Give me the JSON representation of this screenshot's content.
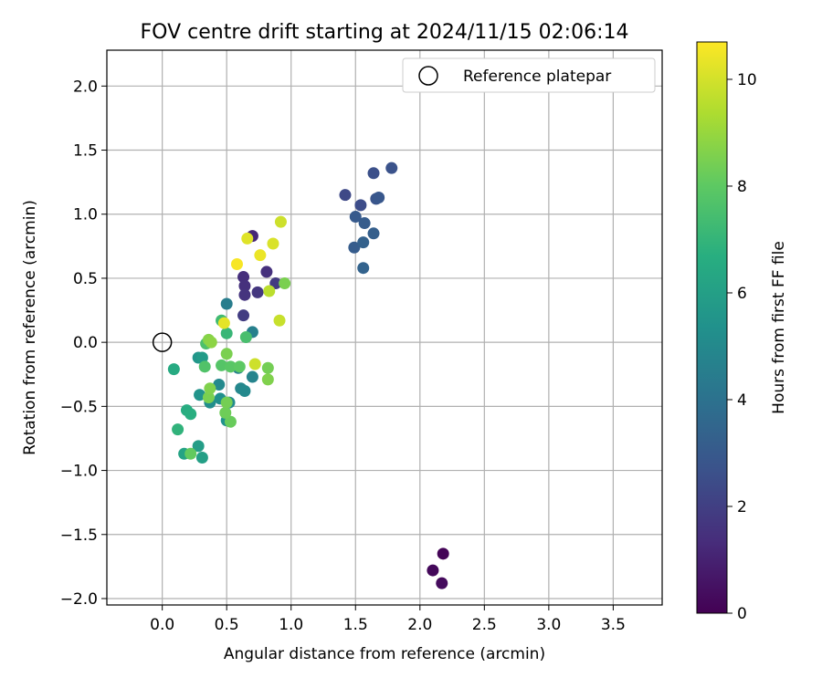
{
  "chart_data": {
    "type": "scatter",
    "title": "FOV centre drift starting at 2024/11/15 02:06:14",
    "xlabel": "Angular distance from reference (arcmin)",
    "ylabel": "Rotation from reference (arcmin)",
    "xlim": [
      -0.43,
      3.88
    ],
    "ylim": [
      -2.05,
      2.28
    ],
    "x_ticks": [
      0.0,
      0.5,
      1.0,
      1.5,
      2.0,
      2.5,
      3.0,
      3.5
    ],
    "x_tick_labels": [
      "0.0",
      "0.5",
      "1.0",
      "1.5",
      "2.0",
      "2.5",
      "3.0",
      "3.5"
    ],
    "y_ticks": [
      -2.0,
      -1.5,
      -1.0,
      -0.5,
      0.0,
      0.5,
      1.0,
      1.5,
      2.0
    ],
    "y_tick_labels": [
      "−2.0",
      "−1.5",
      "−1.0",
      "−0.5",
      "0.0",
      "0.5",
      "1.0",
      "1.5",
      "2.0"
    ],
    "grid": true,
    "legend": {
      "placement": "top-right",
      "entries": [
        "Reference platepar"
      ]
    },
    "reference_point": {
      "name": "Reference platepar",
      "x": 0.0,
      "y": 0.0
    },
    "colorbar": {
      "label": "Hours from first FF file",
      "range": [
        0,
        10.7
      ],
      "ticks": [
        0,
        2,
        4,
        6,
        8,
        10
      ],
      "tick_labels": [
        "0",
        "2",
        "4",
        "6",
        "8",
        "10"
      ],
      "colormap": "viridis"
    },
    "points": [
      {
        "x": 2.18,
        "y": -1.65,
        "h": 0.1
      },
      {
        "x": 2.1,
        "y": -1.78,
        "h": 0.2
      },
      {
        "x": 2.17,
        "y": -1.88,
        "h": 0.3
      },
      {
        "x": 0.7,
        "y": 0.83,
        "h": 1.2
      },
      {
        "x": 0.63,
        "y": 0.51,
        "h": 1.4
      },
      {
        "x": 0.64,
        "y": 0.44,
        "h": 1.5
      },
      {
        "x": 0.64,
        "y": 0.37,
        "h": 1.6
      },
      {
        "x": 0.74,
        "y": 0.39,
        "h": 1.7
      },
      {
        "x": 0.81,
        "y": 0.55,
        "h": 1.5
      },
      {
        "x": 0.88,
        "y": 0.46,
        "h": 1.8
      },
      {
        "x": 0.63,
        "y": 0.21,
        "h": 1.9
      },
      {
        "x": 1.42,
        "y": 1.15,
        "h": 2.3
      },
      {
        "x": 1.64,
        "y": 1.32,
        "h": 2.6
      },
      {
        "x": 1.78,
        "y": 1.36,
        "h": 2.7
      },
      {
        "x": 1.54,
        "y": 1.07,
        "h": 2.5
      },
      {
        "x": 1.66,
        "y": 1.12,
        "h": 2.8
      },
      {
        "x": 1.68,
        "y": 1.13,
        "h": 2.9
      },
      {
        "x": 1.5,
        "y": 0.98,
        "h": 3.0
      },
      {
        "x": 1.57,
        "y": 0.93,
        "h": 3.1
      },
      {
        "x": 1.64,
        "y": 0.85,
        "h": 3.2
      },
      {
        "x": 1.49,
        "y": 0.74,
        "h": 3.1
      },
      {
        "x": 1.56,
        "y": 0.78,
        "h": 3.3
      },
      {
        "x": 1.56,
        "y": 0.58,
        "h": 3.4
      },
      {
        "x": 0.5,
        "y": 0.3,
        "h": 4.5
      },
      {
        "x": 0.7,
        "y": 0.08,
        "h": 4.6
      },
      {
        "x": 0.59,
        "y": -0.2,
        "h": 4.7
      },
      {
        "x": 0.7,
        "y": -0.27,
        "h": 4.8
      },
      {
        "x": 0.61,
        "y": -0.36,
        "h": 4.9
      },
      {
        "x": 0.64,
        "y": -0.38,
        "h": 5.0
      },
      {
        "x": 0.44,
        "y": -0.33,
        "h": 5.0
      },
      {
        "x": 0.52,
        "y": -0.47,
        "h": 5.1
      },
      {
        "x": 0.37,
        "y": -0.47,
        "h": 5.2
      },
      {
        "x": 0.45,
        "y": -0.44,
        "h": 5.3
      },
      {
        "x": 0.5,
        "y": -0.61,
        "h": 5.4
      },
      {
        "x": 0.29,
        "y": -0.41,
        "h": 5.5
      },
      {
        "x": 0.28,
        "y": -0.12,
        "h": 5.6
      },
      {
        "x": 0.31,
        "y": -0.12,
        "h": 5.8
      },
      {
        "x": 0.28,
        "y": -0.81,
        "h": 5.9
      },
      {
        "x": 0.31,
        "y": -0.9,
        "h": 6.0
      },
      {
        "x": 0.17,
        "y": -0.87,
        "h": 6.2
      },
      {
        "x": 0.09,
        "y": -0.21,
        "h": 6.5
      },
      {
        "x": 0.19,
        "y": -0.53,
        "h": 6.6
      },
      {
        "x": 0.22,
        "y": -0.56,
        "h": 6.7
      },
      {
        "x": 0.12,
        "y": -0.68,
        "h": 6.9
      },
      {
        "x": 0.5,
        "y": 0.07,
        "h": 7.1
      },
      {
        "x": 0.46,
        "y": 0.17,
        "h": 7.3
      },
      {
        "x": 0.65,
        "y": 0.04,
        "h": 7.5
      },
      {
        "x": 0.34,
        "y": -0.01,
        "h": 7.6
      },
      {
        "x": 0.33,
        "y": -0.19,
        "h": 7.7
      },
      {
        "x": 0.46,
        "y": -0.18,
        "h": 7.8
      },
      {
        "x": 0.53,
        "y": -0.19,
        "h": 7.9
      },
      {
        "x": 0.6,
        "y": -0.19,
        "h": 8.0
      },
      {
        "x": 0.22,
        "y": -0.87,
        "h": 8.1
      },
      {
        "x": 0.53,
        "y": -0.62,
        "h": 8.2
      },
      {
        "x": 0.49,
        "y": -0.55,
        "h": 8.3
      },
      {
        "x": 0.5,
        "y": -0.47,
        "h": 8.4
      },
      {
        "x": 0.36,
        "y": -0.43,
        "h": 8.5
      },
      {
        "x": 0.37,
        "y": -0.36,
        "h": 8.6
      },
      {
        "x": 0.5,
        "y": -0.09,
        "h": 8.5
      },
      {
        "x": 0.36,
        "y": 0.02,
        "h": 8.7
      },
      {
        "x": 0.38,
        "y": 0.0,
        "h": 8.8
      },
      {
        "x": 0.82,
        "y": -0.2,
        "h": 8.4
      },
      {
        "x": 0.82,
        "y": -0.29,
        "h": 8.6
      },
      {
        "x": 0.95,
        "y": 0.46,
        "h": 8.5
      },
      {
        "x": 0.48,
        "y": 0.15,
        "h": 10.3
      },
      {
        "x": 0.72,
        "y": -0.17,
        "h": 9.9
      },
      {
        "x": 0.91,
        "y": 0.17,
        "h": 9.8
      },
      {
        "x": 0.83,
        "y": 0.4,
        "h": 9.6
      },
      {
        "x": 0.58,
        "y": 0.61,
        "h": 10.6
      },
      {
        "x": 0.76,
        "y": 0.68,
        "h": 10.4
      },
      {
        "x": 0.66,
        "y": 0.81,
        "h": 10.2
      },
      {
        "x": 0.86,
        "y": 0.77,
        "h": 10.1
      },
      {
        "x": 0.92,
        "y": 0.94,
        "h": 9.9
      }
    ]
  }
}
